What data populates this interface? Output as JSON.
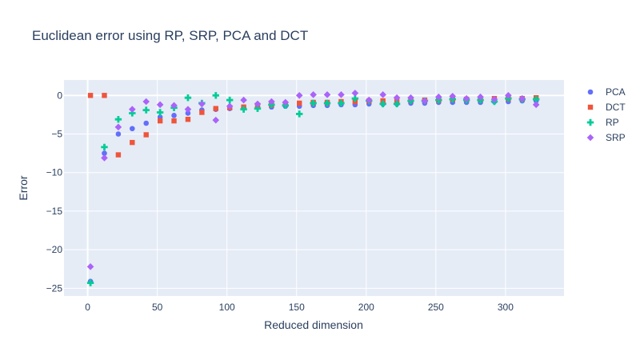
{
  "chart_data": {
    "type": "scatter",
    "title": "Euclidean error using RP, SRP, PCA and DCT",
    "xlabel": "Reduced dimension",
    "ylabel": "Error",
    "xlim": [
      -17,
      342
    ],
    "ylim": [
      -26,
      2
    ],
    "x_ticks": [
      0,
      50,
      100,
      150,
      200,
      250,
      300
    ],
    "y_ticks": [
      0,
      -5,
      -10,
      -15,
      -20,
      -25
    ],
    "x_tick_labels": [
      "0",
      "50",
      "100",
      "150",
      "200",
      "250",
      "300"
    ],
    "y_tick_labels": [
      "0",
      "−5",
      "−10",
      "−15",
      "−20",
      "−25"
    ],
    "grid": true,
    "legend_position": "top-right",
    "x": [
      2,
      12,
      22,
      32,
      42,
      52,
      62,
      72,
      82,
      92,
      102,
      112,
      122,
      132,
      142,
      152,
      162,
      172,
      182,
      192,
      202,
      212,
      222,
      232,
      242,
      252,
      262,
      272,
      282,
      292,
      302,
      312,
      322
    ],
    "series": [
      {
        "name": "PCA",
        "marker": "circle",
        "color": "#636efa",
        "values": [
          -24.1,
          -7.5,
          -5.0,
          -4.3,
          -3.6,
          -2.8,
          -2.6,
          -2.3,
          -1.9,
          -1.8,
          -1.7,
          -1.6,
          -1.5,
          -1.5,
          -1.4,
          -1.4,
          -1.3,
          -1.3,
          -1.2,
          -1.2,
          -1.1,
          -1.1,
          -1.1,
          -1.0,
          -1.0,
          -0.9,
          -0.9,
          -0.9,
          -0.9,
          -0.8,
          -0.8,
          -0.7,
          -0.7
        ]
      },
      {
        "name": "DCT",
        "marker": "square",
        "color": "#ef553b",
        "values": [
          0.0,
          0.0,
          -7.7,
          -6.1,
          -5.1,
          -3.3,
          -3.3,
          -3.1,
          -2.2,
          -1.7,
          -1.6,
          -1.5,
          -1.3,
          -1.2,
          -1.1,
          -1.0,
          -0.9,
          -0.9,
          -0.8,
          -0.8,
          -0.7,
          -0.7,
          -0.6,
          -0.6,
          -0.6,
          -0.6,
          -0.5,
          -0.5,
          -0.5,
          -0.4,
          -0.4,
          -0.4,
          -0.3
        ]
      },
      {
        "name": "RP",
        "marker": "cross",
        "color": "#00cc96",
        "values": [
          -24.3,
          -6.7,
          -3.1,
          -2.3,
          -1.9,
          -2.2,
          -1.6,
          -0.3,
          -1.0,
          0.0,
          -0.6,
          -1.8,
          -1.7,
          -1.2,
          -1.3,
          -2.4,
          -1.0,
          -1.0,
          -1.0,
          -0.4,
          -0.7,
          -1.1,
          -1.1,
          -0.7,
          -0.7,
          -0.6,
          -0.5,
          -0.6,
          -0.6,
          -0.8,
          -0.4,
          -0.5,
          -0.5
        ]
      },
      {
        "name": "SRP",
        "marker": "diamond",
        "color": "#ab63fa",
        "values": [
          -22.2,
          -8.1,
          -4.1,
          -1.8,
          -0.8,
          -1.2,
          -1.3,
          -1.8,
          -1.1,
          -3.2,
          -1.4,
          -0.6,
          -1.1,
          -0.8,
          -0.9,
          0.0,
          0.1,
          0.1,
          0.1,
          0.3,
          -0.6,
          0.1,
          -0.3,
          -0.3,
          -0.7,
          -0.2,
          -0.1,
          -0.4,
          -0.2,
          -0.5,
          0.0,
          -0.4,
          -1.2
        ]
      }
    ]
  }
}
